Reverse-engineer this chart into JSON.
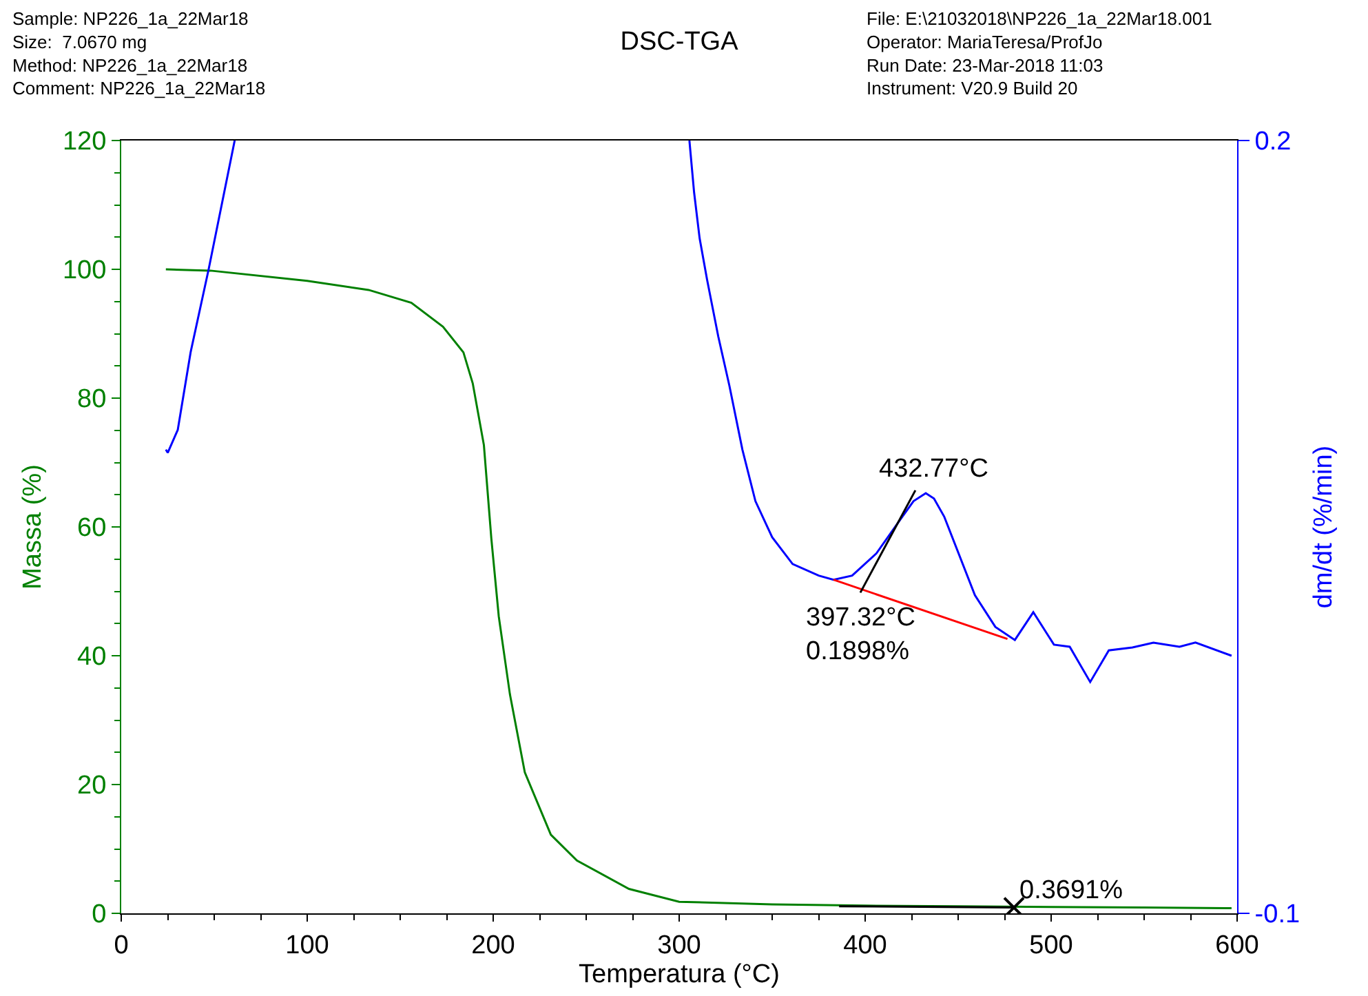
{
  "chart_data": {
    "type": "line",
    "title": "DSC-TGA",
    "xlabel": "Temperatura (°C)",
    "ylabel": "Massa (%)",
    "y2label": "dm/dt (%/min)",
    "annotations": [
      "Sample: NP226_1a_22Mar18\nSize:  7.0670 mg\nMethod: NP226_1a_22Mar18\nComment: NP226_1a_22Mar18",
      "File: E:\\21032018\\NP226_1a_22Mar18.001\nOperator: MariaTeresa/ProfJo\nRun Date: 23-Mar-2018 11:03\nInstrument: V20.9 Build 20",
      {
        "text": "432.77°C",
        "x": 432.77,
        "y": 65
      },
      {
        "text": "397.32°C\n0.1898%",
        "x": 397.32,
        "y": 52
      },
      {
        "text": "0.3691%",
        "x": 480,
        "y": 0.9
      }
    ],
    "xlim": [
      0,
      600
    ],
    "xticks": [
      0,
      100,
      200,
      300,
      400,
      500,
      600
    ],
    "ylim": [
      0,
      120
    ],
    "yticks": [
      0,
      20,
      40,
      60,
      80,
      100,
      120
    ],
    "y2lim": [
      -0.1,
      0.2
    ],
    "y2ticks": [
      -0.1,
      0.2
    ],
    "grid": false,
    "marker": "none",
    "line_style": "solid",
    "series": [
      {
        "color": "#008000",
        "x": [
          24,
          48,
          100,
          133,
          156,
          173,
          184,
          189,
          195,
          199,
          203,
          209,
          217,
          231,
          245,
          273,
          300,
          350,
          400,
          450,
          500,
          550,
          597
        ],
        "values": [
          100.0,
          99.8,
          98.2,
          96.8,
          94.8,
          91.1,
          87.1,
          82.3,
          72.7,
          58.2,
          46.1,
          34.0,
          21.9,
          12.2,
          8.2,
          3.8,
          1.8,
          1.4,
          1.2,
          1.1,
          1.0,
          0.9,
          0.8
        ]
      },
      {
        "color": "#0000ff",
        "axis": "y2",
        "x": [
          24,
          25,
          30.4,
          37.3,
          47,
          61
        ],
        "values": [
          0.08,
          0.0788,
          0.0877,
          0.1178,
          0.15,
          0.2
        ]
      },
      {
        "color": "#0000ff",
        "axis": "y2",
        "x": [
          305.5,
          308,
          311,
          315,
          321,
          327,
          334,
          341,
          350,
          361,
          375,
          383,
          393,
          406,
          420,
          426,
          432.6,
          437,
          442.5,
          459,
          470,
          480.5,
          490.4,
          501.5,
          510,
          521,
          531,
          543.7,
          555,
          569,
          577.6,
          597
        ],
        "values": [
          0.2,
          0.18,
          0.162,
          0.146,
          0.124,
          0.1048,
          0.08,
          0.06,
          0.046,
          0.0356,
          0.0311,
          0.0295,
          0.0311,
          0.0397,
          0.054,
          0.06,
          0.0631,
          0.061,
          0.054,
          0.0235,
          0.0112,
          0.0061,
          0.0169,
          0.0043,
          0.0035,
          -0.0102,
          0.0021,
          0.0032,
          0.0051,
          0.0035,
          0.0051,
          0.0
        ]
      },
      {
        "color": "#ff0000",
        "axis": "y2",
        "x": [
          383,
          476.5
        ],
        "values": [
          0.0295,
          0.0065
        ]
      },
      {
        "color": "#000000",
        "axis": "y2",
        "x": [
          397.4,
          427
        ],
        "values": [
          0.0245,
          0.0642
        ]
      },
      {
        "color": "#000000",
        "x": [
          386,
          480
        ],
        "values": [
          1.1,
          0.9
        ]
      },
      {
        "type": "scatter",
        "marker": "cross",
        "color": "#000000",
        "x": [
          480
        ],
        "values": [
          0.9
        ]
      }
    ]
  }
}
